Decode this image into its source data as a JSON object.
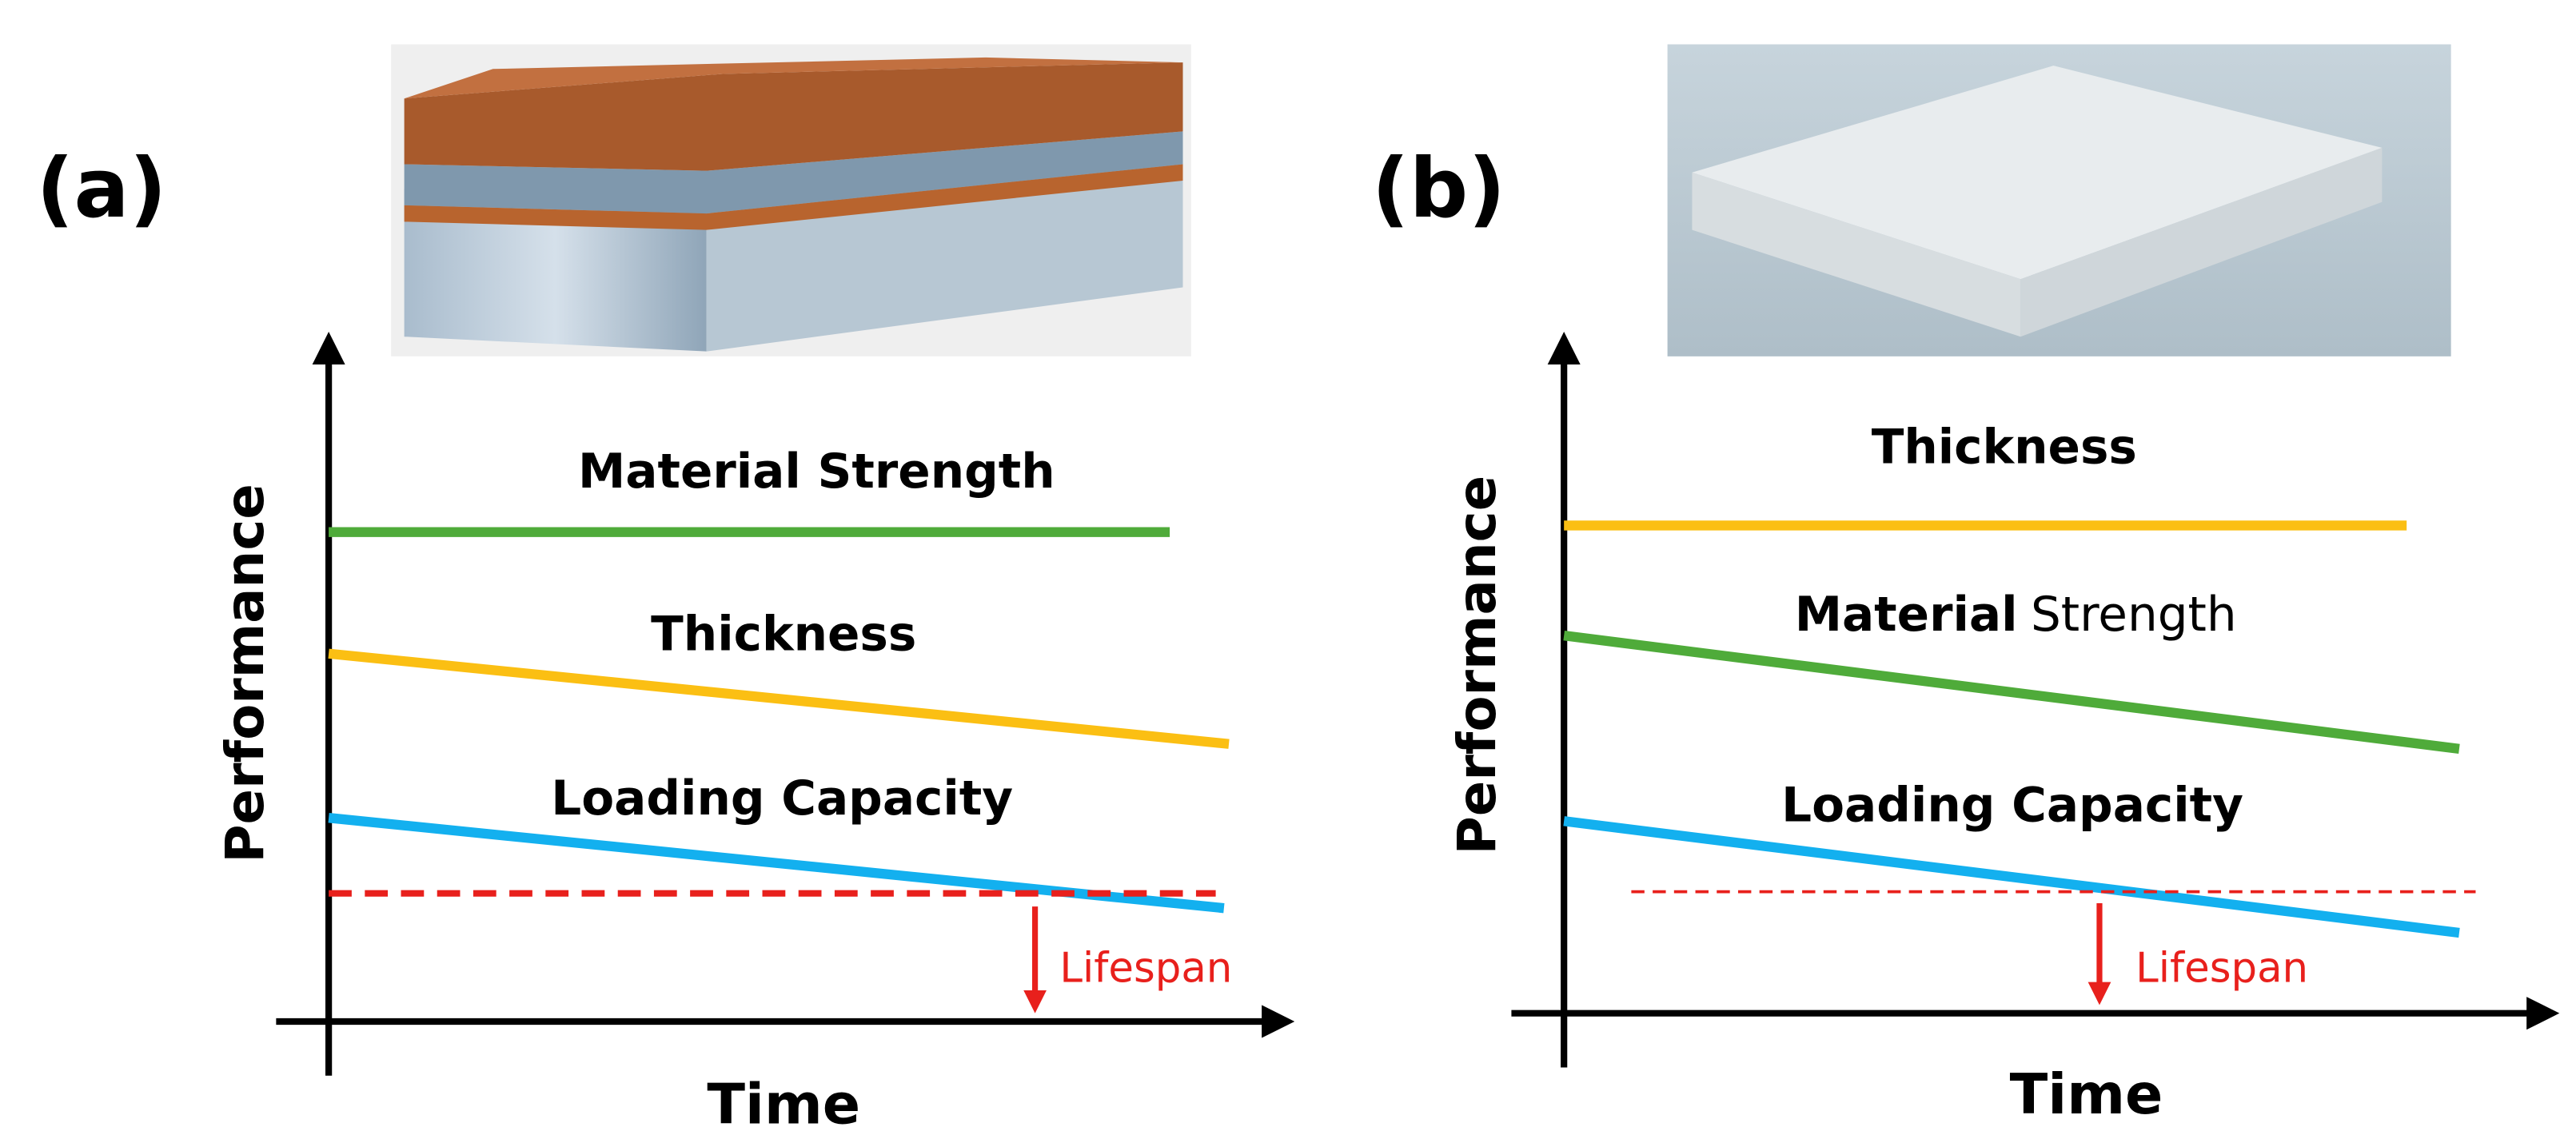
{
  "panels": [
    {
      "tag": "(a)",
      "y_axis": "Performance",
      "x_axis": "Time",
      "curves": [
        {
          "label": "Material Strength"
        },
        {
          "label": "Thickness"
        },
        {
          "label": "Loading Capacity"
        }
      ],
      "threshold_label": "Lifespan"
    },
    {
      "tag": "(b)",
      "y_axis": "Performance",
      "x_axis": "Time",
      "curves": [
        {
          "label": "Thickness"
        },
        {
          "label_bold": "Material",
          "label_regular": "Strength"
        },
        {
          "label": "Loading Capacity"
        }
      ],
      "threshold_label": "Lifespan"
    }
  ]
}
